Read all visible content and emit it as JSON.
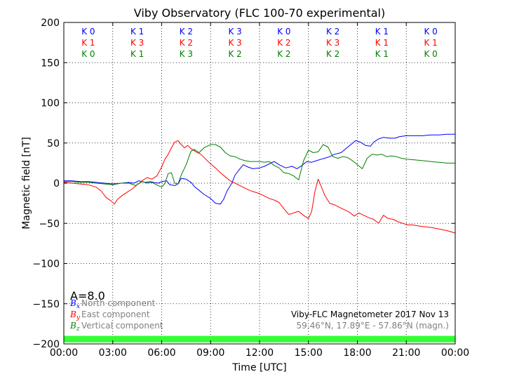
{
  "chart_data": {
    "type": "line",
    "title": "Viby Observatory (FLC 100-70 experimental)",
    "xlabel": "Time [UTC]",
    "ylabel": "Magnetic field [nT]",
    "xlim": [
      0,
      24
    ],
    "ylim": [
      -200,
      200
    ],
    "grid": true,
    "x_ticks": [
      0,
      3,
      6,
      9,
      12,
      15,
      18,
      21,
      24
    ],
    "x_tick_labels": [
      "00:00",
      "03:00",
      "06:00",
      "09:00",
      "12:00",
      "15:00",
      "18:00",
      "21:00",
      "00:00"
    ],
    "y_ticks": [
      -200,
      -150,
      -100,
      -50,
      0,
      50,
      100,
      150,
      200
    ],
    "y_tick_labels": [
      "−200",
      "−150",
      "−100",
      "−50",
      "0",
      "50",
      "100",
      "150",
      "200"
    ],
    "series": [
      {
        "name": "North component",
        "symbol": "B",
        "subscript": "x",
        "color": "#0000ff",
        "x": [
          0,
          0.5,
          1,
          1.5,
          2,
          2.5,
          3,
          3.5,
          4,
          4.3,
          4.6,
          5,
          5.3,
          5.5,
          5.8,
          6,
          6.3,
          6.5,
          6.8,
          7,
          7.2,
          7.5,
          7.8,
          8,
          8.3,
          8.6,
          9,
          9.3,
          9.6,
          9.8,
          10,
          10.3,
          10.5,
          10.8,
          11,
          11.3,
          11.6,
          12,
          12.3,
          12.6,
          12.9,
          13.2,
          13.6,
          14,
          14.3,
          14.6,
          14.9,
          15.2,
          15.5,
          15.8,
          16,
          16.3,
          16.6,
          17,
          17.3,
          17.6,
          17.9,
          18.2,
          18.5,
          18.8,
          19,
          19.3,
          19.6,
          20,
          20.3,
          20.6,
          21,
          21.5,
          22,
          22.5,
          23,
          23.5,
          24
        ],
        "y": [
          3,
          3,
          2,
          2,
          1,
          0,
          -1,
          0,
          1,
          0,
          3,
          1,
          2,
          1,
          0,
          2,
          3,
          -2,
          -3,
          -1,
          6,
          5,
          1,
          -4,
          -9,
          -14,
          -19,
          -25,
          -26,
          -20,
          -10,
          0,
          10,
          18,
          23,
          20,
          18,
          19,
          21,
          24,
          27,
          23,
          19,
          21,
          18,
          22,
          27,
          26,
          28,
          30,
          31,
          33,
          36,
          38,
          43,
          48,
          53,
          51,
          47,
          46,
          51,
          55,
          57,
          56,
          56,
          58,
          59,
          59,
          59,
          60,
          60,
          61,
          61
        ]
      },
      {
        "name": "East component",
        "symbol": "B",
        "subscript": "y",
        "color": "#ff0000",
        "x": [
          0,
          0.5,
          1,
          1.5,
          2,
          2.3,
          2.6,
          2.9,
          3.1,
          3.3,
          3.6,
          3.9,
          4.2,
          4.5,
          4.8,
          5.1,
          5.4,
          5.7,
          6,
          6.2,
          6.4,
          6.6,
          6.8,
          7,
          7.2,
          7.4,
          7.6,
          7.8,
          8.1,
          8.4,
          8.7,
          9,
          9.3,
          9.6,
          9.9,
          10.2,
          10.5,
          10.8,
          11.1,
          11.4,
          11.7,
          12,
          12.3,
          12.6,
          12.9,
          13.2,
          13.5,
          13.8,
          14.1,
          14.4,
          14.7,
          15,
          15.2,
          15.4,
          15.6,
          15.8,
          16,
          16.3,
          16.6,
          16.9,
          17.2,
          17.5,
          17.8,
          18.1,
          18.4,
          18.7,
          19,
          19.3,
          19.6,
          19.9,
          20.2,
          20.5,
          20.8,
          21.1,
          21.4,
          21.7,
          22,
          22.5,
          23,
          23.5,
          24
        ],
        "y": [
          1,
          0,
          -1,
          -2,
          -5,
          -10,
          -18,
          -22,
          -26,
          -20,
          -15,
          -11,
          -7,
          -2,
          3,
          7,
          5,
          9,
          20,
          30,
          36,
          44,
          51,
          53,
          48,
          44,
          47,
          43,
          39,
          36,
          30,
          24,
          19,
          13,
          8,
          3,
          0,
          -3,
          -6,
          -9,
          -11,
          -13,
          -16,
          -19,
          -21,
          -24,
          -32,
          -39,
          -37,
          -35,
          -40,
          -44,
          -35,
          -10,
          5,
          -5,
          -15,
          -25,
          -27,
          -30,
          -33,
          -36,
          -41,
          -37,
          -40,
          -43,
          -45,
          -50,
          -40,
          -44,
          -45,
          -48,
          -50,
          -52,
          -52,
          -53,
          -54,
          -55,
          -57,
          -59,
          -62
        ]
      },
      {
        "name": "Vertical component",
        "symbol": "B",
        "subscript": "z",
        "color": "#008000",
        "x": [
          0,
          0.5,
          1,
          1.5,
          2,
          2.5,
          3,
          3.5,
          4,
          4.4,
          4.8,
          5.1,
          5.4,
          5.7,
          6,
          6.2,
          6.4,
          6.6,
          6.8,
          7,
          7.2,
          7.5,
          7.8,
          8,
          8.3,
          8.6,
          9,
          9.3,
          9.6,
          9.9,
          10.2,
          10.5,
          10.8,
          11.1,
          11.4,
          11.7,
          12,
          12.3,
          12.6,
          12.9,
          13.2,
          13.5,
          13.8,
          14.1,
          14.4,
          14.7,
          15,
          15.3,
          15.6,
          15.9,
          16.2,
          16.5,
          16.8,
          17.1,
          17.4,
          17.7,
          18,
          18.3,
          18.6,
          18.9,
          19.2,
          19.5,
          19.8,
          20.1,
          20.4,
          20.7,
          21,
          21.5,
          22,
          22.5,
          23,
          23.5,
          24
        ],
        "y": [
          2,
          2,
          1,
          1,
          0,
          -1,
          -2,
          0,
          0,
          -3,
          2,
          0,
          1,
          -2,
          -5,
          0,
          12,
          13,
          0,
          -1,
          10,
          23,
          40,
          42,
          38,
          44,
          48,
          48,
          45,
          38,
          34,
          33,
          30,
          28,
          27,
          27,
          27,
          26,
          27,
          22,
          19,
          13,
          12,
          9,
          4,
          28,
          41,
          38,
          39,
          48,
          45,
          33,
          31,
          33,
          32,
          28,
          23,
          18,
          31,
          36,
          35,
          36,
          33,
          34,
          33,
          31,
          30,
          29,
          28,
          27,
          26,
          25,
          25
        ]
      }
    ],
    "k_indices": {
      "centers": [
        1.5,
        4.5,
        7.5,
        10.5,
        13.5,
        16.5,
        19.5,
        22.5
      ],
      "rows": [
        {
          "color": "#0000ff",
          "labels": [
            "K 0",
            "K 1",
            "K 2",
            "K 3",
            "K 0",
            "K 2",
            "K 1",
            "K 0"
          ]
        },
        {
          "color": "#ff0000",
          "labels": [
            "K 1",
            "K 3",
            "K 2",
            "K 3",
            "K 2",
            "K 3",
            "K 1",
            "K 1"
          ]
        },
        {
          "color": "#008000",
          "labels": [
            "K 0",
            "K 1",
            "K 3",
            "K 2",
            "K 2",
            "K 2",
            "K 1",
            "K 0"
          ]
        }
      ]
    },
    "a_index": "A=8.0",
    "info_line1": "Viby-FLC Magnetometer 2017 Nov 13",
    "info_line2": "59.46°N, 17.89°E - 57.86°N (magn.)",
    "status_bar_color": "#33ff33",
    "status_bar_range": [
      -198,
      -190
    ]
  }
}
